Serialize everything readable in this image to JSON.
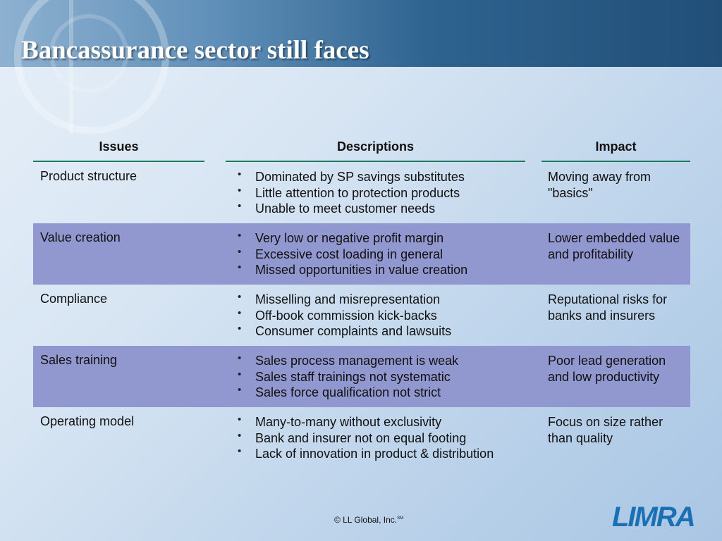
{
  "title": "Bancassurance sector still faces",
  "table": {
    "headers": {
      "issues": "Issues",
      "descriptions": "Descriptions",
      "impact": "Impact"
    },
    "rows": [
      {
        "issue": "Product structure",
        "descriptions": [
          "Dominated by SP savings substitutes",
          "Little attention to protection products",
          "Unable to meet customer needs"
        ],
        "impact": "Moving away from \"basics\""
      },
      {
        "issue": "Value creation",
        "descriptions": [
          "Very low or negative profit margin",
          "Excessive cost loading in general",
          "Missed opportunities in value creation"
        ],
        "impact": "Lower embedded value and profitability"
      },
      {
        "issue": "Compliance",
        "descriptions": [
          "Misselling and misrepresentation",
          "Off-book commission kick-backs",
          "Consumer complaints and lawsuits"
        ],
        "impact": "Reputational risks for banks and insurers"
      },
      {
        "issue": "Sales training",
        "descriptions": [
          "Sales process management is weak",
          "Sales staff trainings not systematic",
          "Sales force qualification not strict"
        ],
        "impact": "Poor lead generation and low productivity"
      },
      {
        "issue": "Operating model",
        "descriptions": [
          "Many-to-many without exclusivity",
          "Bank and insurer not on equal footing",
          "Lack of innovation in product & distribution"
        ],
        "impact": "Focus on size rather than quality"
      }
    ]
  },
  "footer": {
    "copyright": "© LL Global, Inc.",
    "mark": "SM"
  },
  "logo": {
    "text": "LIMRA",
    "color": "#1b70b5"
  },
  "colors": {
    "shaded_row": "#9197cf",
    "header_rule": "#1c7a5e"
  }
}
